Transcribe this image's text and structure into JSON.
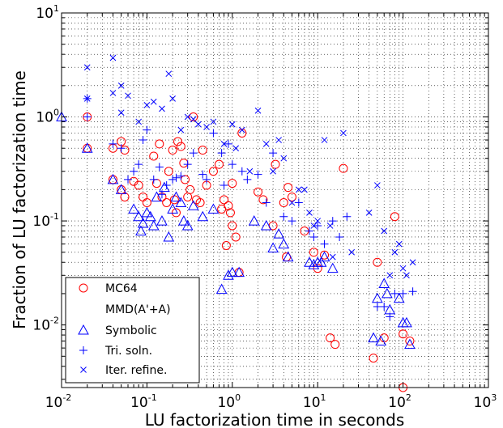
{
  "chart_data": {
    "type": "scatter",
    "xlabel": "LU factorization time in seconds",
    "ylabel": "Fraction of LU factorization time",
    "x_scale": "log",
    "y_scale": "log",
    "xlim": [
      0.01,
      1000
    ],
    "ylim": [
      0.0025,
      10
    ],
    "x_ticks": [
      {
        "base": "10",
        "exp": "-2"
      },
      {
        "base": "10",
        "exp": "-1"
      },
      {
        "base": "10",
        "exp": "0"
      },
      {
        "base": "10",
        "exp": "1"
      },
      {
        "base": "10",
        "exp": "2"
      },
      {
        "base": "10",
        "exp": "3"
      }
    ],
    "y_ticks": [
      {
        "base": "10",
        "exp": "-2"
      },
      {
        "base": "10",
        "exp": "-1"
      },
      {
        "base": "10",
        "exp": "0"
      },
      {
        "base": "10",
        "exp": "1"
      }
    ],
    "grid": true,
    "legend_position": "bottom-left",
    "series": [
      {
        "name": "MC64",
        "marker": "circle",
        "color": "#ff0000",
        "points": [
          [
            0.02,
            1.0
          ],
          [
            0.02,
            0.5
          ],
          [
            0.04,
            0.5
          ],
          [
            0.05,
            0.58
          ],
          [
            0.055,
            0.48
          ],
          [
            0.04,
            0.25
          ],
          [
            0.05,
            0.2
          ],
          [
            0.055,
            0.17
          ],
          [
            0.07,
            0.24
          ],
          [
            0.08,
            0.22
          ],
          [
            0.09,
            0.17
          ],
          [
            0.1,
            0.15
          ],
          [
            0.12,
            0.42
          ],
          [
            0.13,
            0.23
          ],
          [
            0.14,
            0.55
          ],
          [
            0.15,
            0.17
          ],
          [
            0.17,
            0.15
          ],
          [
            0.18,
            0.3
          ],
          [
            0.2,
            0.48
          ],
          [
            0.21,
            0.16
          ],
          [
            0.22,
            0.12
          ],
          [
            0.23,
            0.58
          ],
          [
            0.25,
            0.52
          ],
          [
            0.27,
            0.36
          ],
          [
            0.28,
            0.25
          ],
          [
            0.3,
            0.17
          ],
          [
            0.32,
            0.2
          ],
          [
            0.35,
            1.0
          ],
          [
            0.38,
            0.16
          ],
          [
            0.42,
            0.15
          ],
          [
            0.45,
            0.48
          ],
          [
            0.5,
            0.22
          ],
          [
            0.6,
            0.3
          ],
          [
            0.7,
            0.35
          ],
          [
            0.75,
            0.13
          ],
          [
            0.8,
            0.16
          ],
          [
            0.9,
            0.14
          ],
          [
            0.95,
            0.12
          ],
          [
            1.0,
            0.09
          ],
          [
            0.85,
            0.058
          ],
          [
            1.0,
            0.23
          ],
          [
            1.1,
            0.07
          ],
          [
            1.2,
            0.032
          ],
          [
            1.3,
            0.7
          ],
          [
            2.0,
            0.19
          ],
          [
            2.3,
            0.16
          ],
          [
            3.0,
            0.09
          ],
          [
            3.2,
            0.35
          ],
          [
            4.0,
            0.15
          ],
          [
            4.5,
            0.21
          ],
          [
            5.0,
            0.17
          ],
          [
            4.3,
            0.045
          ],
          [
            7.0,
            0.08
          ],
          [
            9.0,
            0.05
          ],
          [
            10.0,
            0.035
          ],
          [
            12.0,
            0.047
          ],
          [
            14.0,
            0.0075
          ],
          [
            16.0,
            0.0065
          ],
          [
            20.0,
            0.32
          ],
          [
            45.0,
            0.0048
          ],
          [
            50.0,
            0.04
          ],
          [
            60.0,
            0.0075
          ],
          [
            80.0,
            0.11
          ],
          [
            100.0,
            0.0025
          ],
          [
            120.0,
            0.007
          ],
          [
            100.0,
            0.0082
          ]
        ]
      },
      {
        "name": "MMD(A'+A)",
        "marker": "none",
        "color": "#0000ff",
        "points": []
      },
      {
        "name": "Symbolic",
        "marker": "triangle",
        "color": "#0000ff",
        "points": [
          [
            0.01,
            1.0
          ],
          [
            0.02,
            0.5
          ],
          [
            0.04,
            0.25
          ],
          [
            0.05,
            0.2
          ],
          [
            0.07,
            0.13
          ],
          [
            0.08,
            0.11
          ],
          [
            0.085,
            0.08
          ],
          [
            0.09,
            0.095
          ],
          [
            0.1,
            0.12
          ],
          [
            0.11,
            0.11
          ],
          [
            0.12,
            0.09
          ],
          [
            0.13,
            0.17
          ],
          [
            0.15,
            0.1
          ],
          [
            0.16,
            0.21
          ],
          [
            0.18,
            0.07
          ],
          [
            0.2,
            0.13
          ],
          [
            0.22,
            0.17
          ],
          [
            0.25,
            0.15
          ],
          [
            0.27,
            0.1
          ],
          [
            0.3,
            0.09
          ],
          [
            0.35,
            0.14
          ],
          [
            0.45,
            0.11
          ],
          [
            0.6,
            0.13
          ],
          [
            0.75,
            0.022
          ],
          [
            0.9,
            0.03
          ],
          [
            1.0,
            0.032
          ],
          [
            1.2,
            0.032
          ],
          [
            1.8,
            0.1
          ],
          [
            2.5,
            0.09
          ],
          [
            3.0,
            0.055
          ],
          [
            3.5,
            0.075
          ],
          [
            4.0,
            0.06
          ],
          [
            4.5,
            0.045
          ],
          [
            8.0,
            0.04
          ],
          [
            9.0,
            0.038
          ],
          [
            10.0,
            0.04
          ],
          [
            11.0,
            0.04
          ],
          [
            12.0,
            0.045
          ],
          [
            15.0,
            0.035
          ],
          [
            45.0,
            0.0075
          ],
          [
            50.0,
            0.018
          ],
          [
            55.0,
            0.007
          ],
          [
            60.0,
            0.025
          ],
          [
            65.0,
            0.02
          ],
          [
            70.0,
            0.014
          ],
          [
            90.0,
            0.018
          ],
          [
            100.0,
            0.0105
          ],
          [
            110.0,
            0.0105
          ],
          [
            120.0,
            0.0065
          ]
        ]
      },
      {
        "name": "Tri. soln.",
        "marker": "plus",
        "color": "#0000ff",
        "points": [
          [
            0.02,
            1.0
          ],
          [
            0.02,
            1.5
          ],
          [
            0.04,
            0.55
          ],
          [
            0.05,
            0.5
          ],
          [
            0.06,
            0.25
          ],
          [
            0.07,
            0.3
          ],
          [
            0.08,
            0.35
          ],
          [
            0.09,
            0.6
          ],
          [
            0.1,
            0.75
          ],
          [
            0.12,
            0.25
          ],
          [
            0.14,
            0.33
          ],
          [
            0.15,
            0.18
          ],
          [
            0.17,
            0.22
          ],
          [
            0.2,
            0.25
          ],
          [
            0.22,
            0.26
          ],
          [
            0.25,
            0.27
          ],
          [
            0.3,
            0.35
          ],
          [
            0.35,
            0.45
          ],
          [
            0.45,
            0.28
          ],
          [
            0.5,
            0.25
          ],
          [
            0.6,
            0.7
          ],
          [
            0.75,
            0.45
          ],
          [
            0.8,
            0.22
          ],
          [
            0.9,
            0.55
          ],
          [
            1.0,
            0.35
          ],
          [
            1.3,
            0.3
          ],
          [
            1.5,
            0.25
          ],
          [
            2.0,
            0.28
          ],
          [
            2.5,
            0.15
          ],
          [
            3.0,
            0.45
          ],
          [
            4.0,
            0.11
          ],
          [
            5.0,
            0.1
          ],
          [
            6.0,
            0.15
          ],
          [
            8.0,
            0.08
          ],
          [
            9.0,
            0.07
          ],
          [
            10.0,
            0.09
          ],
          [
            12.0,
            0.06
          ],
          [
            15.0,
            0.1
          ],
          [
            18.0,
            0.07
          ],
          [
            22.0,
            0.11
          ],
          [
            50.0,
            0.015
          ],
          [
            60.0,
            0.015
          ],
          [
            70.0,
            0.012
          ],
          [
            80.0,
            0.02
          ],
          [
            100.0,
            0.02
          ],
          [
            130.0,
            0.021
          ]
        ]
      },
      {
        "name": "Iter. refine.",
        "marker": "x",
        "color": "#0000ff",
        "points": [
          [
            0.02,
            3.0
          ],
          [
            0.02,
            1.5
          ],
          [
            0.04,
            3.7
          ],
          [
            0.04,
            1.7
          ],
          [
            0.05,
            2.0
          ],
          [
            0.06,
            1.6
          ],
          [
            0.05,
            1.1
          ],
          [
            0.08,
            0.9
          ],
          [
            0.1,
            1.3
          ],
          [
            0.12,
            1.4
          ],
          [
            0.15,
            1.2
          ],
          [
            0.18,
            2.6
          ],
          [
            0.2,
            1.5
          ],
          [
            0.25,
            0.75
          ],
          [
            0.3,
            1.0
          ],
          [
            0.35,
            0.95
          ],
          [
            0.4,
            0.85
          ],
          [
            0.5,
            0.8
          ],
          [
            0.6,
            0.9
          ],
          [
            0.8,
            0.55
          ],
          [
            1.0,
            0.85
          ],
          [
            1.1,
            0.5
          ],
          [
            1.3,
            0.75
          ],
          [
            1.6,
            0.3
          ],
          [
            2.0,
            1.15
          ],
          [
            2.5,
            0.55
          ],
          [
            3.0,
            0.3
          ],
          [
            3.5,
            0.6
          ],
          [
            4.0,
            0.4
          ],
          [
            5.0,
            0.15
          ],
          [
            6.0,
            0.2
          ],
          [
            7.0,
            0.2
          ],
          [
            8.0,
            0.12
          ],
          [
            9.0,
            0.09
          ],
          [
            10.0,
            0.1
          ],
          [
            12.0,
            0.6
          ],
          [
            14.0,
            0.09
          ],
          [
            15.0,
            0.045
          ],
          [
            20.0,
            0.7
          ],
          [
            25.0,
            0.05
          ],
          [
            40.0,
            0.12
          ],
          [
            50.0,
            0.22
          ],
          [
            60.0,
            0.08
          ],
          [
            70.0,
            0.03
          ],
          [
            80.0,
            0.05
          ],
          [
            90.0,
            0.06
          ],
          [
            100.0,
            0.035
          ],
          [
            110.0,
            0.03
          ],
          [
            130.0,
            0.04
          ]
        ]
      }
    ]
  }
}
